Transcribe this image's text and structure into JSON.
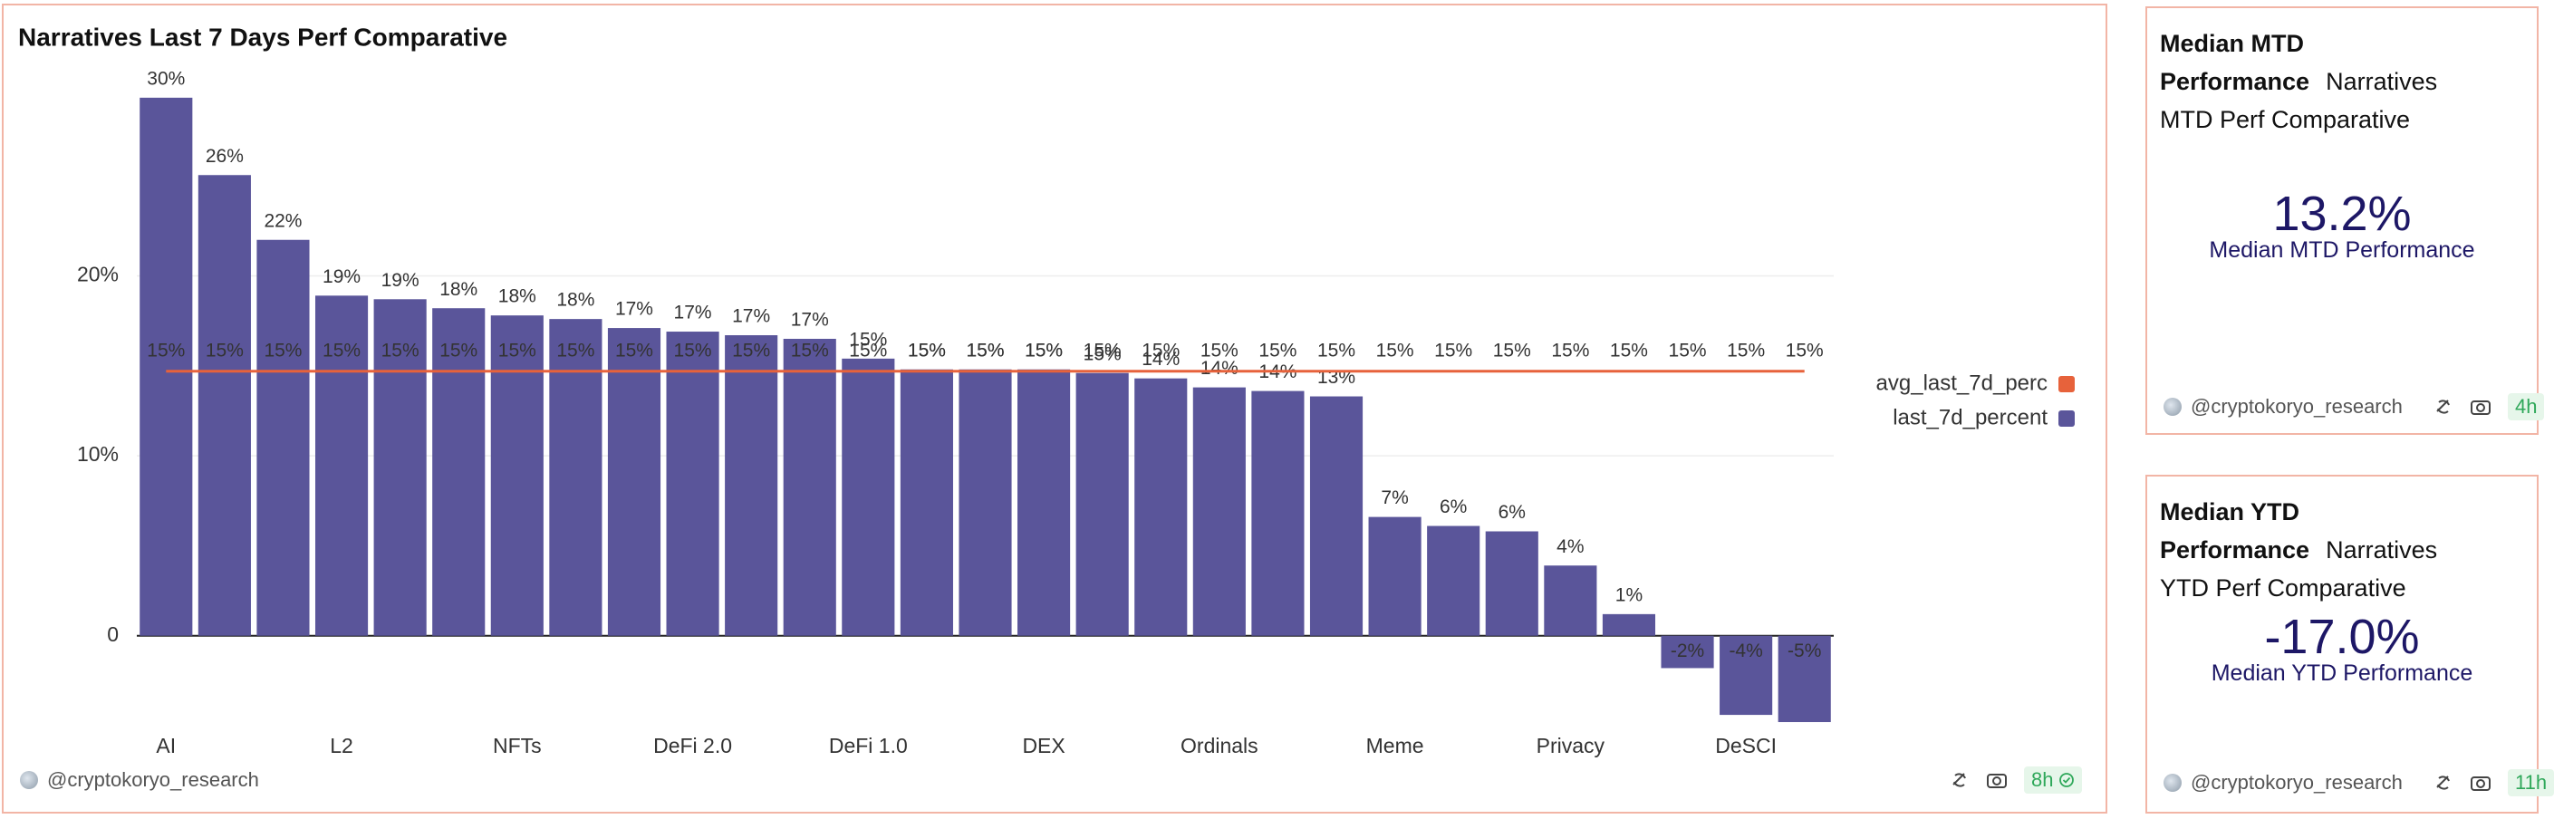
{
  "chart_data": {
    "type": "bar",
    "title": "Narratives Last 7 Days Perf Comparative",
    "categories": [
      "AI",
      null,
      null,
      "L2",
      null,
      null,
      "NFTs",
      null,
      null,
      "DeFi 2.0",
      null,
      null,
      "DeFi 1.0",
      null,
      null,
      "DEX",
      null,
      null,
      "Ordinals",
      null,
      null,
      "Meme",
      null,
      null,
      "Privacy",
      null,
      null,
      "DeSCI",
      null
    ],
    "series": [
      {
        "name": "avg_last_7d_perc",
        "type": "line",
        "color": "#e7623b",
        "values": [
          14.7,
          14.7,
          14.7,
          14.7,
          14.7,
          14.7,
          14.7,
          14.7,
          14.7,
          14.7,
          14.7,
          14.7,
          14.7,
          14.7,
          14.7,
          14.7,
          14.7,
          14.7,
          14.7,
          14.7,
          14.7,
          14.7,
          14.7,
          14.7,
          14.7,
          14.7,
          14.7,
          14.7,
          14.7
        ],
        "value_labels": [
          "15%",
          "15%",
          "15%",
          "15%",
          "15%",
          "15%",
          "15%",
          "15%",
          "15%",
          "15%",
          "15%",
          "15%",
          "15%",
          "15%",
          "15%",
          "15%",
          "15%",
          "15%",
          "15%",
          "15%",
          "15%",
          "15%",
          "15%",
          "15%",
          "15%",
          "15%",
          "15%",
          "15%",
          "15%"
        ]
      },
      {
        "name": "last_7d_percent",
        "type": "bar",
        "color": "#5a559a",
        "values": [
          29.9,
          25.6,
          22.0,
          18.9,
          18.7,
          18.2,
          17.8,
          17.6,
          17.1,
          16.9,
          16.7,
          16.5,
          15.4,
          14.8,
          14.8,
          14.8,
          14.6,
          14.3,
          13.8,
          13.6,
          13.3,
          6.6,
          6.1,
          5.8,
          3.9,
          1.2,
          -1.8,
          -4.4,
          -4.8
        ],
        "value_labels": [
          "30%",
          "26%",
          "22%",
          "19%",
          "19%",
          "18%",
          "18%",
          "18%",
          "17%",
          "17%",
          "17%",
          "17%",
          "15%",
          "15%",
          "15%",
          "15%",
          "15%",
          "14%",
          "14%",
          "14%",
          "13%",
          "7%",
          "6%",
          "6%",
          "4%",
          "1%",
          "-2%",
          "-4%",
          "-5%"
        ]
      }
    ],
    "ylim": [
      -5,
      31
    ],
    "yticks": [
      {
        "value": 0,
        "label": "0"
      },
      {
        "value": 10,
        "label": "10%"
      },
      {
        "value": 20,
        "label": "20%"
      }
    ],
    "grid": true,
    "legend": "right"
  },
  "footer": {
    "author": "@cryptokoryo_research",
    "age": "8h"
  },
  "counters": [
    {
      "title": "Median MTD Performance",
      "subtitle": "Narratives MTD Perf Comparative",
      "value": "13.2%",
      "label": "Median MTD Performance",
      "author": "@cryptokoryo_research",
      "age": "4h"
    },
    {
      "title": "Median YTD Performance",
      "subtitle": "Narratives YTD Perf Comparative",
      "value": "-17.0%",
      "label": "Median YTD Performance",
      "author": "@cryptokoryo_research",
      "age": "11h"
    }
  ]
}
